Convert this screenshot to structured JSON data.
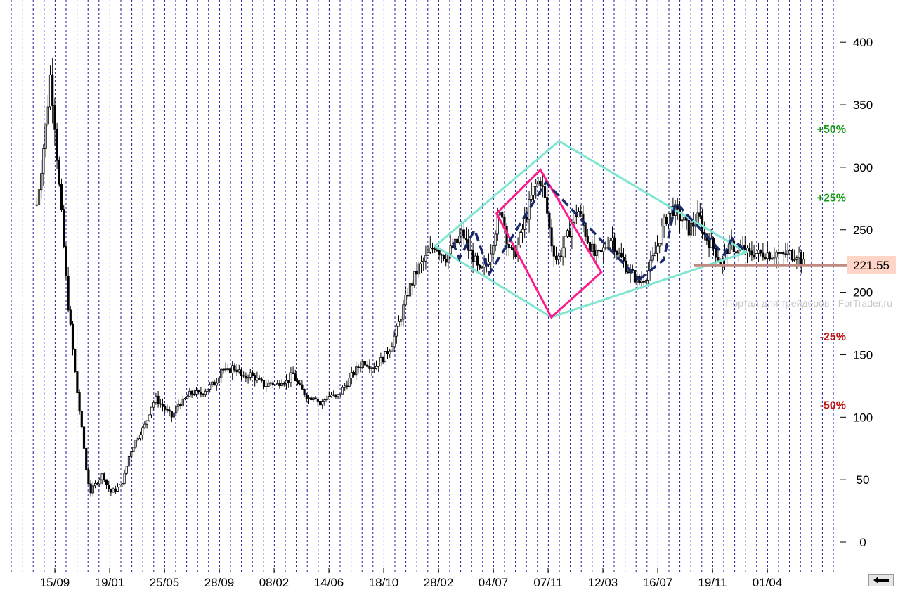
{
  "chart_data": {
    "type": "candlestick",
    "title": "",
    "xlabel": "",
    "ylabel": "",
    "ylim": [
      -20,
      425
    ],
    "grid": "vertical dashed, blue",
    "colors": {
      "price": "#000000",
      "grid": "#1a1aa0",
      "outer_diamond": "#7fe6cf",
      "inner_diamond": "#ff1a8c",
      "zigzag": "#1a2a6a",
      "last_price_bg": "#ffd5c8",
      "last_price_line": "#c08a80",
      "pct_up": "#159a15",
      "pct_down": "#c01010"
    },
    "y_ticks": [
      "0",
      "50",
      "100",
      "150",
      "200",
      "250",
      "300",
      "350",
      "400"
    ],
    "x_tick_labels": [
      "15/09",
      "19/01",
      "25/05",
      "28/09",
      "08/02",
      "14/06",
      "18/10",
      "28/02",
      "04/07",
      "07/11",
      "12/03",
      "16/07",
      "19/11",
      "01/04"
    ],
    "x_tick_index": [
      0,
      1,
      2,
      3,
      4,
      5,
      6,
      7,
      8,
      9,
      10,
      11,
      12,
      13
    ],
    "price_path": [
      [
        -0.33,
        270
      ],
      [
        -0.25,
        300
      ],
      [
        -0.17,
        330
      ],
      [
        -0.08,
        375
      ],
      [
        0.0,
        335
      ],
      [
        0.07,
        290
      ],
      [
        0.14,
        250
      ],
      [
        0.22,
        200
      ],
      [
        0.3,
        165
      ],
      [
        0.38,
        130
      ],
      [
        0.45,
        105
      ],
      [
        0.52,
        80
      ],
      [
        0.58,
        55
      ],
      [
        0.65,
        40
      ],
      [
        0.72,
        45
      ],
      [
        0.8,
        50
      ],
      [
        0.88,
        55
      ],
      [
        0.95,
        45
      ],
      [
        1.02,
        40
      ],
      [
        1.1,
        42
      ],
      [
        1.2,
        45
      ],
      [
        1.28,
        55
      ],
      [
        1.36,
        70
      ],
      [
        1.46,
        80
      ],
      [
        1.56,
        88
      ],
      [
        1.66,
        95
      ],
      [
        1.75,
        108
      ],
      [
        1.84,
        115
      ],
      [
        1.94,
        110
      ],
      [
        2.04,
        105
      ],
      [
        2.14,
        100
      ],
      [
        2.24,
        110
      ],
      [
        2.34,
        112
      ],
      [
        2.44,
        118
      ],
      [
        2.54,
        120
      ],
      [
        2.64,
        118
      ],
      [
        2.74,
        122
      ],
      [
        2.84,
        125
      ],
      [
        2.94,
        128
      ],
      [
        3.04,
        140
      ],
      [
        3.14,
        135
      ],
      [
        3.24,
        140
      ],
      [
        3.34,
        138
      ],
      [
        3.44,
        130
      ],
      [
        3.54,
        135
      ],
      [
        3.64,
        132
      ],
      [
        3.74,
        128
      ],
      [
        3.84,
        125
      ],
      [
        3.94,
        128
      ],
      [
        4.04,
        125
      ],
      [
        4.14,
        130
      ],
      [
        4.24,
        128
      ],
      [
        4.34,
        135
      ],
      [
        4.44,
        125
      ],
      [
        4.54,
        120
      ],
      [
        4.64,
        115
      ],
      [
        4.74,
        118
      ],
      [
        4.84,
        110
      ],
      [
        4.94,
        115
      ],
      [
        5.04,
        118
      ],
      [
        5.14,
        115
      ],
      [
        5.24,
        122
      ],
      [
        5.34,
        128
      ],
      [
        5.44,
        135
      ],
      [
        5.54,
        140
      ],
      [
        5.64,
        145
      ],
      [
        5.74,
        142
      ],
      [
        5.84,
        140
      ],
      [
        5.94,
        145
      ],
      [
        6.04,
        150
      ],
      [
        6.14,
        158
      ],
      [
        6.24,
        170
      ],
      [
        6.34,
        185
      ],
      [
        6.44,
        200
      ],
      [
        6.54,
        210
      ],
      [
        6.64,
        220
      ],
      [
        6.74,
        225
      ],
      [
        6.84,
        232
      ],
      [
        6.94,
        238
      ],
      [
        7.04,
        232
      ],
      [
        7.14,
        228
      ],
      [
        7.24,
        235
      ],
      [
        7.34,
        240
      ],
      [
        7.44,
        248
      ],
      [
        7.54,
        235
      ],
      [
        7.64,
        228
      ],
      [
        7.74,
        215
      ],
      [
        7.86,
        220
      ],
      [
        7.96,
        235
      ],
      [
        8.06,
        255
      ],
      [
        8.16,
        265
      ],
      [
        8.26,
        240
      ],
      [
        8.36,
        228
      ],
      [
        8.46,
        238
      ],
      [
        8.56,
        255
      ],
      [
        8.66,
        270
      ],
      [
        8.76,
        285
      ],
      [
        8.86,
        290
      ],
      [
        8.96,
        270
      ],
      [
        9.06,
        240
      ],
      [
        9.16,
        225
      ],
      [
        9.26,
        235
      ],
      [
        9.36,
        245
      ],
      [
        9.46,
        260
      ],
      [
        9.56,
        265
      ],
      [
        9.66,
        250
      ],
      [
        9.76,
        238
      ],
      [
        9.86,
        228
      ],
      [
        9.96,
        230
      ],
      [
        10.06,
        238
      ],
      [
        10.16,
        245
      ],
      [
        10.26,
        232
      ],
      [
        10.36,
        225
      ],
      [
        10.46,
        218
      ],
      [
        10.56,
        213
      ],
      [
        10.66,
        208
      ],
      [
        10.76,
        212
      ],
      [
        10.86,
        220
      ],
      [
        10.96,
        232
      ],
      [
        11.06,
        248
      ],
      [
        11.16,
        260
      ],
      [
        11.26,
        268
      ],
      [
        11.36,
        262
      ],
      [
        11.46,
        258
      ],
      [
        11.56,
        250
      ],
      [
        11.66,
        255
      ],
      [
        11.76,
        260
      ],
      [
        11.86,
        245
      ],
      [
        11.96,
        240
      ],
      [
        12.06,
        232
      ],
      [
        12.16,
        222
      ],
      [
        12.26,
        235
      ],
      [
        12.36,
        238
      ],
      [
        12.46,
        232
      ],
      [
        12.56,
        235
      ],
      [
        12.66,
        230
      ],
      [
        12.76,
        232
      ],
      [
        12.86,
        230
      ],
      [
        12.96,
        232
      ],
      [
        13.06,
        230
      ],
      [
        13.16,
        232
      ],
      [
        13.26,
        228
      ],
      [
        13.36,
        232
      ],
      [
        13.46,
        230
      ],
      [
        13.56,
        232
      ],
      [
        13.66,
        222
      ]
    ],
    "outer_diamond": [
      [
        6.94,
        237
      ],
      [
        9.2,
        321
      ],
      [
        12.62,
        232
      ],
      [
        9.06,
        180
      ]
    ],
    "inner_diamond": [
      [
        8.06,
        263
      ],
      [
        8.86,
        298
      ],
      [
        9.97,
        216
      ],
      [
        9.06,
        180
      ]
    ],
    "zigzag_top": [
      [
        7.26,
        240
      ],
      [
        7.38,
        227
      ],
      [
        7.66,
        250
      ],
      [
        7.93,
        215
      ],
      [
        8.96,
        288
      ],
      [
        10.66,
        210
      ]
    ],
    "zigzag_bottom": [
      [
        10.66,
        210
      ],
      [
        11.11,
        226
      ],
      [
        11.33,
        272
      ],
      [
        12.21,
        230
      ],
      [
        12.36,
        243
      ],
      [
        12.62,
        232
      ]
    ],
    "last_price": {
      "value": "221.55",
      "line_from_index": 11.66
    },
    "percent_levels": [
      {
        "label": "+50%",
        "value": 331,
        "tone": "up"
      },
      {
        "label": "+25%",
        "value": 276,
        "tone": "up"
      },
      {
        "label": "-25%",
        "value": 165,
        "tone": "down"
      },
      {
        "label": "-50%",
        "value": 110,
        "tone": "down"
      }
    ],
    "watermark": "Портал для трейдеров - ForTrader.ru"
  },
  "controls": {
    "scroll_back_icon": "left-arrow-icon"
  }
}
